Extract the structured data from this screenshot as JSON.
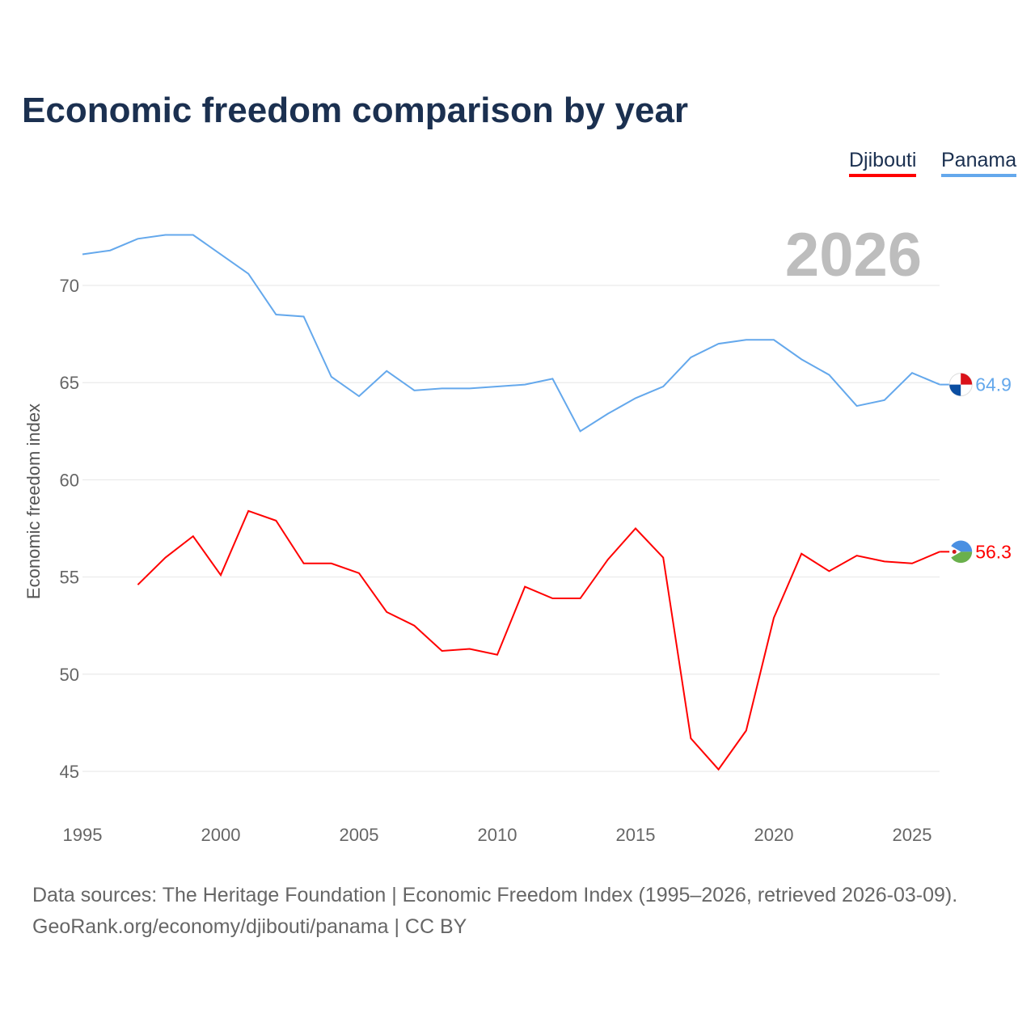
{
  "title": "Economic freedom comparison by year",
  "year_display": "2026",
  "source_line1": "Data sources: The Heritage Foundation | Economic Freedom Index (1995–2026, retrieved 2026-03-09).",
  "source_line2": "GeoRank.org/economy/djibouti/panama | CC BY",
  "chart_data": {
    "type": "line",
    "title": "Economic freedom comparison by year",
    "xlabel": "",
    "ylabel": "Economic freedom index",
    "xlim": [
      1995,
      2026
    ],
    "ylim": [
      44,
      73
    ],
    "xticks": [
      1995,
      2000,
      2005,
      2010,
      2015,
      2020,
      2025
    ],
    "yticks": [
      45,
      50,
      55,
      60,
      65,
      70
    ],
    "grid": true,
    "legend": "top-right",
    "series": [
      {
        "name": "Djibouti",
        "color": "#ff0000",
        "end_label": "56.3",
        "x": [
          1997,
          1998,
          1999,
          2000,
          2001,
          2002,
          2003,
          2004,
          2005,
          2006,
          2007,
          2008,
          2009,
          2010,
          2011,
          2012,
          2013,
          2014,
          2015,
          2016,
          2017,
          2018,
          2019,
          2020,
          2021,
          2022,
          2023,
          2024,
          2025,
          2026
        ],
        "values": [
          54.6,
          56.0,
          57.1,
          55.1,
          58.4,
          57.9,
          55.7,
          55.7,
          55.2,
          53.2,
          52.5,
          51.2,
          51.3,
          51.0,
          54.5,
          53.9,
          53.9,
          55.9,
          57.5,
          56.0,
          46.7,
          45.1,
          47.1,
          52.9,
          56.2,
          55.3,
          56.1,
          55.8,
          55.7,
          56.3
        ]
      },
      {
        "name": "Panama",
        "color": "#64a8ec",
        "end_label": "64.9",
        "x": [
          1995,
          1996,
          1997,
          1998,
          1999,
          2000,
          2001,
          2002,
          2003,
          2004,
          2005,
          2006,
          2007,
          2008,
          2009,
          2010,
          2011,
          2012,
          2013,
          2014,
          2015,
          2016,
          2017,
          2018,
          2019,
          2020,
          2021,
          2022,
          2023,
          2024,
          2025,
          2026
        ],
        "values": [
          71.6,
          71.8,
          72.4,
          72.6,
          72.6,
          71.6,
          70.6,
          68.5,
          68.4,
          65.3,
          64.3,
          65.6,
          64.6,
          64.7,
          64.7,
          64.8,
          64.9,
          65.2,
          62.5,
          63.4,
          64.2,
          64.8,
          66.3,
          67.0,
          67.2,
          67.2,
          66.2,
          65.4,
          63.8,
          64.1,
          65.5,
          64.9
        ]
      }
    ]
  }
}
